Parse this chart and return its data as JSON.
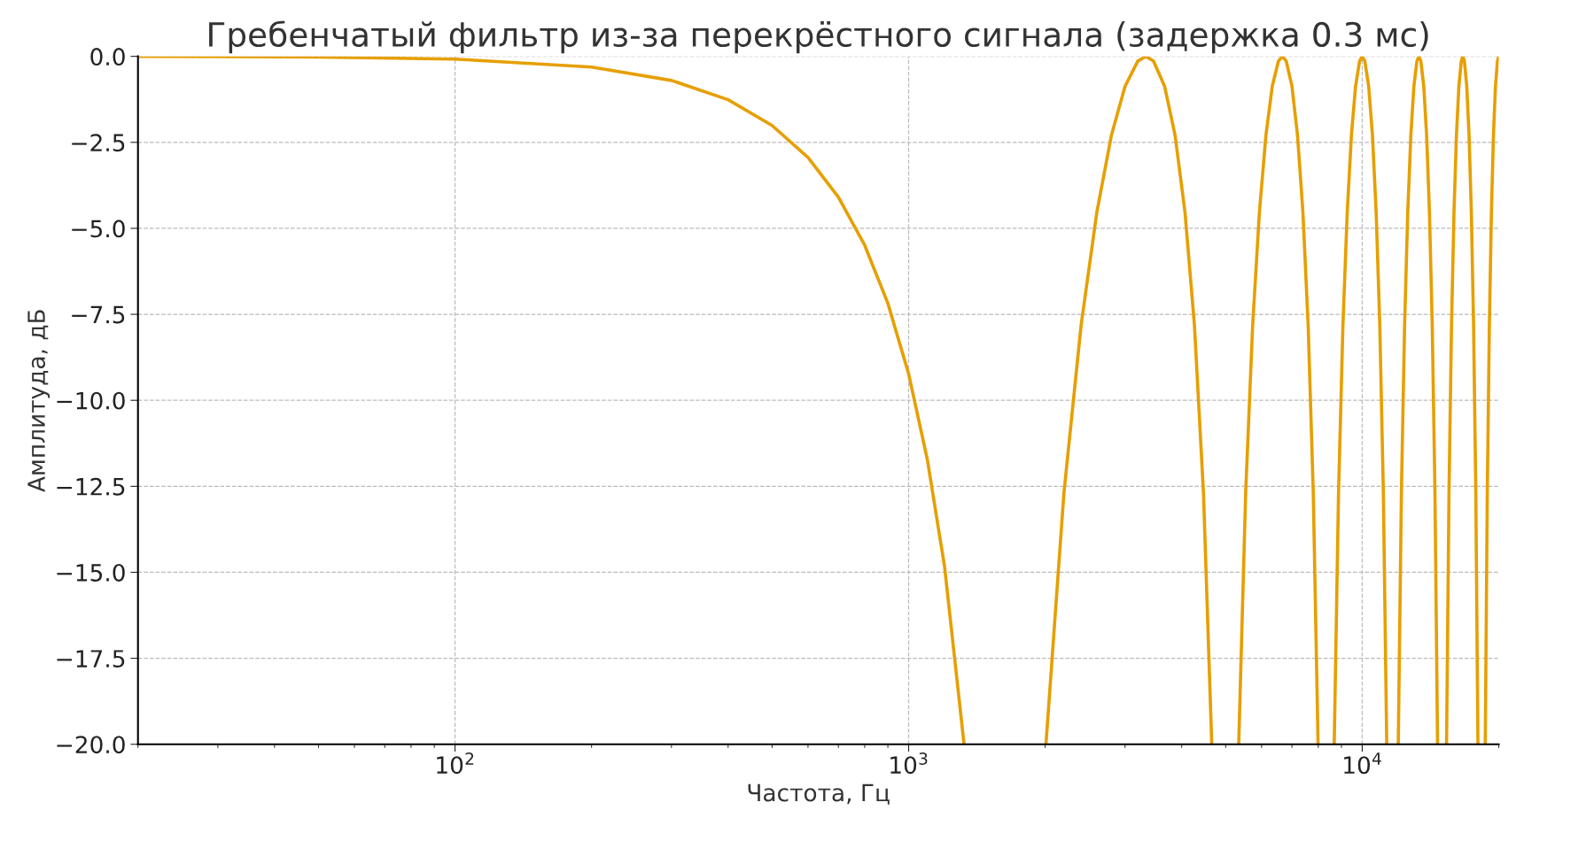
{
  "chart_data": {
    "type": "line",
    "title": "Гребенчатый фильтр из-за перекрёстного сигнала (задержка 0.3 мс)",
    "xlabel": "Частота, Гц",
    "ylabel": "Амплитуда, дБ",
    "log": "x",
    "grid": true,
    "line_style": "solid",
    "marker": "none",
    "xlim": [
      20,
      20000
    ],
    "ylim": [
      -20,
      0
    ],
    "xticks": [
      {
        "value": 100,
        "label": "10$^{2}$"
      },
      {
        "value": 1000,
        "label": "10$^{3}$"
      },
      {
        "value": 10000,
        "label": "10$^{4}$"
      }
    ],
    "yticks": [
      {
        "value": 0,
        "label": "0.0"
      },
      {
        "value": -2.5,
        "label": "−2.5"
      },
      {
        "value": -5,
        "label": "−5.0"
      },
      {
        "value": -7.5,
        "label": "−7.5"
      },
      {
        "value": -10,
        "label": "−10.0"
      },
      {
        "value": -12.5,
        "label": "−12.5"
      },
      {
        "value": -15,
        "label": "−15.0"
      },
      {
        "value": -17.5,
        "label": "−17.5"
      },
      {
        "value": -20,
        "label": "−20.0"
      }
    ],
    "series": [
      {
        "color": "#e69f00",
        "x": [
          20,
          50,
          100,
          200,
          300,
          400,
          500,
          600,
          700,
          800,
          900,
          1000,
          1100,
          1200,
          1325,
          1600,
          2008,
          2200,
          2400,
          2600,
          2800,
          3000,
          3200,
          3333,
          3467,
          3667,
          3867,
          4067,
          4267,
          4467,
          4659,
          5000,
          5342,
          5534,
          5734,
          5934,
          6134,
          6334,
          6534,
          6667,
          6800,
          7000,
          7200,
          7400,
          7600,
          7800,
          7992,
          8333,
          8675,
          8867,
          9067,
          9267,
          9467,
          9667,
          9867,
          10000,
          10133,
          10333,
          10533,
          10733,
          10933,
          11133,
          11325,
          11667,
          12008,
          12200,
          12400,
          12600,
          12800,
          13000,
          13200,
          13333,
          13467,
          13667,
          13867,
          14067,
          14267,
          14467,
          14658,
          15000,
          15342,
          15534,
          15734,
          15934,
          16134,
          16334,
          16534,
          16667,
          16800,
          17000,
          17200,
          17400,
          17600,
          17800,
          17992,
          18333,
          18675,
          18867,
          19067,
          19267,
          19467,
          19667,
          19867,
          20000
        ],
        "values": [
          0.0,
          -0.02,
          -0.08,
          -0.31,
          -0.7,
          -1.26,
          -2.01,
          -2.94,
          -4.09,
          -5.49,
          -7.18,
          -9.23,
          -11.73,
          -14.83,
          -20,
          null,
          -20,
          -12.69,
          -7.82,
          -4.53,
          -2.29,
          -0.87,
          -0.14,
          0,
          -0.14,
          -0.87,
          -2.29,
          -4.53,
          -7.82,
          -12.69,
          -20,
          null,
          -20,
          -12.69,
          -7.82,
          -4.53,
          -2.29,
          -0.87,
          -0.14,
          0,
          -0.14,
          -0.87,
          -2.29,
          -4.53,
          -7.82,
          -12.69,
          -20,
          null,
          -20,
          -12.69,
          -7.82,
          -4.53,
          -2.29,
          -0.87,
          -0.14,
          0,
          -0.14,
          -0.87,
          -2.29,
          -4.53,
          -7.82,
          -12.69,
          -20,
          null,
          -20,
          -12.69,
          -7.82,
          -4.53,
          -2.29,
          -0.87,
          -0.14,
          0,
          -0.14,
          -0.87,
          -2.29,
          -4.53,
          -7.82,
          -12.69,
          -20,
          null,
          -20,
          -12.69,
          -7.82,
          -4.53,
          -2.29,
          -0.87,
          -0.14,
          0,
          -0.14,
          -0.87,
          -2.29,
          -4.53,
          -7.82,
          -12.69,
          -20,
          null,
          -20,
          -12.69,
          -7.82,
          -4.53,
          -2.29,
          -0.87,
          -0.14,
          0
        ]
      }
    ]
  }
}
